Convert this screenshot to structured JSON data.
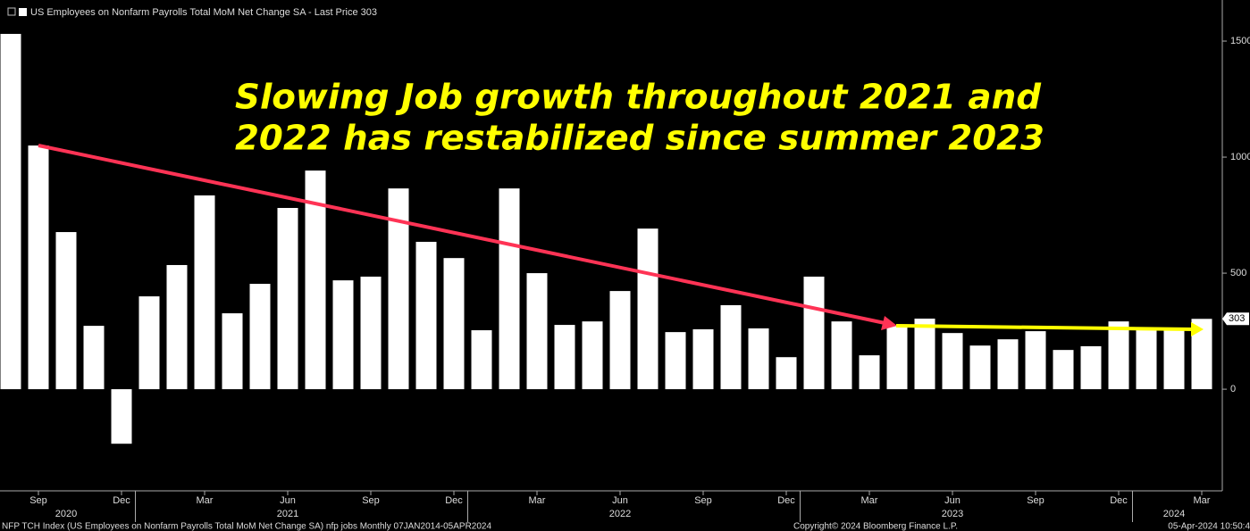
{
  "chart_data": {
    "type": "bar",
    "legend_text": "US Employees on Nonfarm Payrolls Total MoM Net Change SA - Last Price 303",
    "annotation": [
      "Slowing Job growth throughout 2021 and",
      "2022 has restabilized since summer 2023"
    ],
    "categories": [
      null,
      "Sep",
      null,
      null,
      "Dec",
      null,
      null,
      "Mar",
      null,
      null,
      "Jun",
      null,
      null,
      "Sep",
      null,
      null,
      "Dec",
      null,
      null,
      "Mar",
      null,
      null,
      "Jun",
      null,
      null,
      "Sep",
      null,
      null,
      "Dec",
      null,
      null,
      "Mar",
      null,
      null,
      "Jun",
      null,
      null,
      "Sep",
      null,
      null,
      "Dec",
      null,
      null,
      "Mar"
    ],
    "years": [
      null,
      null,
      "2020",
      null,
      null,
      null,
      null,
      null,
      null,
      null,
      "2021",
      null,
      null,
      null,
      null,
      null,
      null,
      null,
      null,
      null,
      null,
      null,
      "2022",
      null,
      null,
      null,
      null,
      null,
      null,
      null,
      null,
      null,
      null,
      null,
      "2023",
      null,
      null,
      null,
      null,
      null,
      null,
      null,
      "2024",
      null
    ],
    "values": [
      1531,
      1050,
      677,
      273,
      -235,
      400,
      535,
      835,
      327,
      454,
      781,
      942,
      469,
      485,
      865,
      635,
      565,
      254,
      865,
      500,
      277,
      292,
      423,
      692,
      246,
      258,
      362,
      262,
      138,
      485,
      292,
      146,
      277,
      304,
      242,
      188,
      215,
      250,
      169,
      185,
      292,
      262,
      254,
      303
    ],
    "color": "#ffffff",
    "last_price": 303,
    "ylim": [
      -438,
      1677
    ],
    "yticks": [
      0,
      500,
      1000,
      1500
    ],
    "footer_left": "NFP TCH Index (US Employees on Nonfarm Payrolls Total MoM Net Change SA) nfp jobs Monthly 07JAN2014-05APR2024",
    "footer_center": "Copyright© 2024 Bloomberg Finance L.P.",
    "footer_right": "05-Apr-2024 10:50:4"
  }
}
